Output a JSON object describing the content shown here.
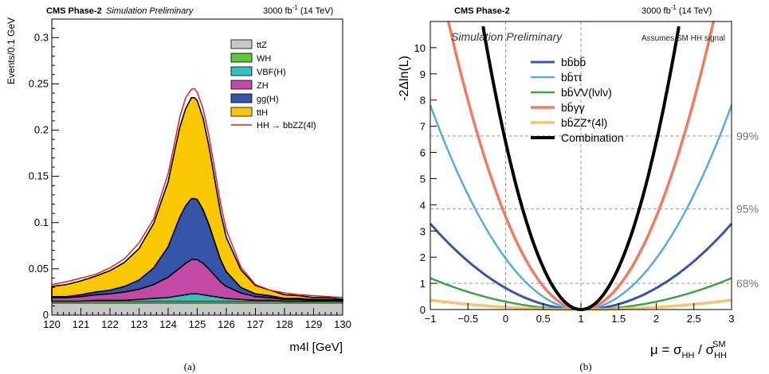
{
  "panels": {
    "a": {
      "label": "(a)"
    },
    "b": {
      "label": "(b)"
    }
  },
  "chart_data": [
    {
      "type": "area",
      "stacked": true,
      "header": {
        "left": "CMS Phase-2",
        "left_italic": "Simulation Preliminary",
        "right": "3000 fb",
        "right_sup": "-1",
        "right_suffix": " (14 TeV)"
      },
      "xlabel": "m4l [GeV]",
      "ylabel": "Events/0.1 GeV",
      "xlim": [
        120,
        130
      ],
      "ylim": [
        0,
        0.32
      ],
      "xticks": [
        "120",
        "121",
        "122",
        "123",
        "124",
        "125",
        "126",
        "127",
        "128",
        "129",
        "130"
      ],
      "yticks": [
        "0",
        "0.05",
        "0.1",
        "0.15",
        "0.2",
        "0.25",
        "0.3"
      ],
      "x": [
        120.0,
        120.5,
        121.0,
        121.5,
        122.0,
        122.5,
        123.0,
        123.5,
        124.0,
        124.2,
        124.4,
        124.6,
        124.8,
        124.9,
        125.0,
        125.2,
        125.4,
        125.6,
        125.8,
        126.0,
        126.5,
        127.0,
        127.5,
        128.0,
        128.5,
        129.0,
        129.5,
        130.0
      ],
      "series": [
        {
          "name": "ttZ",
          "color": "#c8c8c8",
          "values": [
            0.013,
            0.013,
            0.013,
            0.013,
            0.013,
            0.013,
            0.013,
            0.013,
            0.013,
            0.013,
            0.013,
            0.013,
            0.013,
            0.013,
            0.013,
            0.013,
            0.013,
            0.013,
            0.013,
            0.013,
            0.013,
            0.013,
            0.013,
            0.013,
            0.013,
            0.013,
            0.013,
            0.013
          ]
        },
        {
          "name": "WH",
          "color": "#5cc83c",
          "values": [
            0.002,
            0.002,
            0.002,
            0.002,
            0.002,
            0.002,
            0.002,
            0.002,
            0.002,
            0.002,
            0.002,
            0.002,
            0.002,
            0.002,
            0.002,
            0.002,
            0.002,
            0.002,
            0.002,
            0.002,
            0.002,
            0.002,
            0.002,
            0.002,
            0.002,
            0.002,
            0.002,
            0.002
          ]
        },
        {
          "name": "VBF(H)",
          "color": "#36c1c1",
          "values": [
            0.0,
            0.0,
            0.0,
            0.001,
            0.001,
            0.001,
            0.002,
            0.003,
            0.004,
            0.005,
            0.006,
            0.007,
            0.008,
            0.008,
            0.008,
            0.007,
            0.006,
            0.005,
            0.004,
            0.003,
            0.002,
            0.001,
            0.001,
            0.0,
            0.0,
            0.0,
            0.0,
            0.0
          ]
        },
        {
          "name": "ZH",
          "color": "#c24aa6",
          "values": [
            0.004,
            0.004,
            0.005,
            0.006,
            0.007,
            0.009,
            0.011,
            0.015,
            0.022,
            0.026,
            0.03,
            0.034,
            0.037,
            0.037,
            0.037,
            0.034,
            0.029,
            0.023,
            0.017,
            0.013,
            0.007,
            0.004,
            0.003,
            0.002,
            0.002,
            0.001,
            0.001,
            0.001
          ]
        },
        {
          "name": "gg(H)",
          "color": "#3655a8",
          "values": [
            0.001,
            0.001,
            0.002,
            0.003,
            0.004,
            0.006,
            0.01,
            0.018,
            0.033,
            0.044,
            0.055,
            0.062,
            0.066,
            0.066,
            0.065,
            0.058,
            0.048,
            0.036,
            0.024,
            0.016,
            0.006,
            0.003,
            0.002,
            0.001,
            0.001,
            0.001,
            0.001,
            0.0
          ]
        },
        {
          "name": "ttH",
          "color": "#f9c802",
          "values": [
            0.011,
            0.013,
            0.015,
            0.017,
            0.021,
            0.026,
            0.034,
            0.048,
            0.07,
            0.084,
            0.097,
            0.105,
            0.109,
            0.109,
            0.107,
            0.099,
            0.085,
            0.068,
            0.051,
            0.037,
            0.019,
            0.009,
            0.006,
            0.004,
            0.003,
            0.002,
            0.002,
            0.001
          ]
        }
      ],
      "overlay": {
        "name": "HH → bbZZ(4l)",
        "color": "#e01f26",
        "values": [
          0.033,
          0.036,
          0.04,
          0.044,
          0.051,
          0.061,
          0.078,
          0.104,
          0.153,
          0.183,
          0.214,
          0.235,
          0.244,
          0.245,
          0.241,
          0.223,
          0.194,
          0.158,
          0.121,
          0.092,
          0.052,
          0.033,
          0.027,
          0.024,
          0.022,
          0.021,
          0.02,
          0.019
        ]
      },
      "legend": {
        "position": "top-right"
      }
    },
    {
      "type": "line",
      "header": {
        "left": "CMS Phase-2",
        "right": "3000 fb",
        "right_sup": "-1",
        "right_suffix": " (14 TeV)"
      },
      "sublabel": "Simulation Preliminary",
      "note": "Assumes SM HH signal",
      "xlabel": "μ = σ_HH / σ_HH^SM",
      "ylabel": "-2Δln(L)",
      "xlim": [
        -1,
        3
      ],
      "ylim": [
        0,
        11
      ],
      "xticks": [
        "−1",
        "−0.5",
        "0",
        "0.5",
        "1",
        "1.5",
        "2",
        "2.5",
        "3"
      ],
      "yticks": [
        "0",
        "1",
        "2",
        "3",
        "4",
        "5",
        "6",
        "7",
        "8",
        "9",
        "10"
      ],
      "thresholds": [
        {
          "label": "68%",
          "y": 1.0
        },
        {
          "label": "95%",
          "y": 3.84
        },
        {
          "label": "99%",
          "y": 6.63
        }
      ],
      "series": [
        {
          "name": "bb̄bb̄",
          "color": "#3b55a6",
          "width": 3,
          "a": 0.82
        },
        {
          "name": "bb̄ττ",
          "color": "#5aaae0",
          "width": 2.5,
          "a": 1.95
        },
        {
          "name": "bb̄VV(lνlν)",
          "color": "#3aa548",
          "width": 2.5,
          "a": 0.3
        },
        {
          "name": "bb̄γγ",
          "color": "#ef7b64",
          "width": 3.5,
          "a": 3.55
        },
        {
          "name": "bb̄ZZ*(4l)",
          "color": "#f9c46c",
          "width": 3.5,
          "a": 0.09
        },
        {
          "name": "Combination",
          "color": "#000000",
          "width": 4,
          "a": 6.4
        }
      ],
      "legend": {
        "position": "top-left"
      }
    }
  ]
}
